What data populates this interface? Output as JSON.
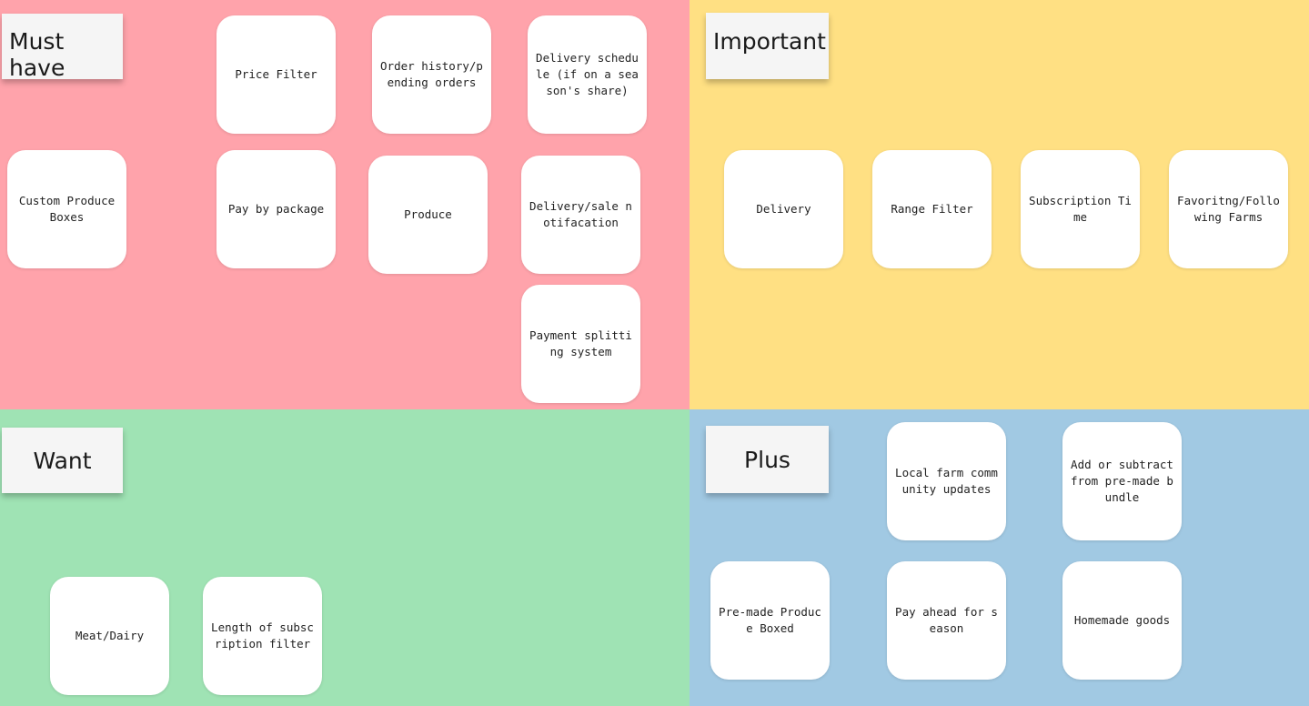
{
  "quadrants": {
    "must_have": {
      "label": "Must have",
      "color": "#ffa3ab",
      "cards": {
        "price_filter": "Price Filter",
        "order_history": "Order history/pending orders",
        "delivery_schedule": "Delivery schedule (if on a season's share)",
        "custom_produce_boxes": "Custom Produce Boxes",
        "pay_by_package": "Pay by package",
        "produce": "Produce",
        "delivery_sale_notification": "Delivery/sale notifacation",
        "payment_splitting": "Payment splitting system"
      }
    },
    "important": {
      "label": "Important",
      "color": "#ffe083",
      "cards": {
        "delivery": "Delivery",
        "range_filter": "Range Filter",
        "subscription_time": "Subscription Time",
        "favoriting_farms": "Favoritng/Following Farms"
      }
    },
    "want": {
      "label": "Want",
      "color": "#9fe3b4",
      "cards": {
        "meat_dairy": "Meat/Dairy",
        "length_subscription": "Length of subscription filter"
      }
    },
    "plus": {
      "label": "Plus",
      "color": "#a1c9e3",
      "cards": {
        "local_farm_updates": "Local farm community updates",
        "add_subtract_bundle": "Add or subtract from pre-made bundle",
        "premade_produce": "Pre-made Produce Boxed",
        "pay_ahead": "Pay ahead for season",
        "homemade_goods": "Homemade goods"
      }
    }
  }
}
